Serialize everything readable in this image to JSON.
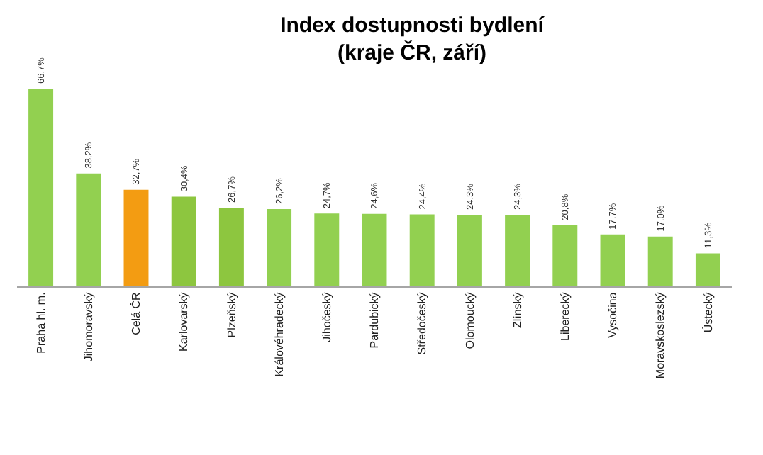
{
  "chart_data": {
    "type": "bar",
    "title": "Index dostupnosti bydlení\n(kraje ČR, září)",
    "categories": [
      "Praha hl. m.",
      "Jihomoravský",
      "Celá ČR",
      "Karlovarský",
      "Plzeňský",
      "Královéhradecký",
      "Jihočeský",
      "Pardubický",
      "Středočeský",
      "Olomoucký",
      "Zlínský",
      "Liberecký",
      "Vysočina",
      "Moravskoslezský",
      "Ústecký"
    ],
    "values": [
      66.7,
      38.2,
      32.7,
      30.4,
      26.7,
      26.2,
      24.7,
      24.6,
      24.4,
      24.3,
      24.3,
      20.8,
      17.7,
      17.0,
      11.3
    ],
    "value_labels": [
      "66,7%",
      "38,2%",
      "32,7%",
      "30,4%",
      "26,7%",
      "26,2%",
      "24,7%",
      "24,6%",
      "24,4%",
      "24,3%",
      "24,3%",
      "20,8%",
      "17,7%",
      "17,0%",
      "11,3%"
    ],
    "colors": [
      "#92d050",
      "#92d050",
      "#f39c12",
      "#8dc63f",
      "#8dc63f",
      "#92d050",
      "#92d050",
      "#92d050",
      "#92d050",
      "#92d050",
      "#92d050",
      "#92d050",
      "#92d050",
      "#92d050",
      "#92d050"
    ]
  }
}
